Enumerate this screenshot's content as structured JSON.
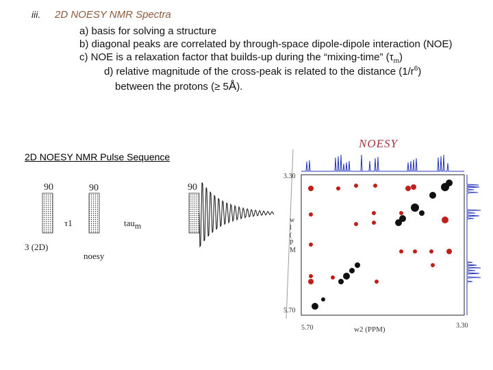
{
  "slide": {
    "numeral": "iii.",
    "heading": "2D NOESY NMR Spectra",
    "points": [
      "a) basis for solving a structure",
      "b) diagonal peaks are correlated by through-space dipole-dipole interaction (NOE)",
      "c) NOE is a relaxation factor that builds-up during the “mixing-time” (τ",
      "d) relative magnitude of the cross-peak is related to the distance (1/r",
      "between the protons (≥ 5"
    ],
    "point3_sub": "m",
    "point3_end": ")",
    "point4_sup": "6",
    "point4_end": ")",
    "point5_unit": "Å",
    "point5_end": ")."
  },
  "pulse": {
    "title": "2D NOESY NMR Pulse Sequence",
    "pulse1": "90",
    "pulse2": "90",
    "pulse3": "90",
    "t1_label": "τ1",
    "tau_label": "tau",
    "tau_sub": "m",
    "dim_label": "3  (2D)",
    "name_label": "noesy"
  },
  "spectrum": {
    "title": "NOESY",
    "y_top": "3.30",
    "y_bottom": "5.70",
    "x_left": "5.70",
    "x_right": "3.30",
    "xlabel": "w2 (PPM)",
    "ylabel_partial": "w\nl\n(\nP\nM"
  },
  "colors": {
    "heading": "#8b5a3c",
    "spectrum_title": "#a0343a",
    "diagonal_peak": "#111111",
    "cross_peak": "#c0201a",
    "projection": "#2233bb"
  }
}
